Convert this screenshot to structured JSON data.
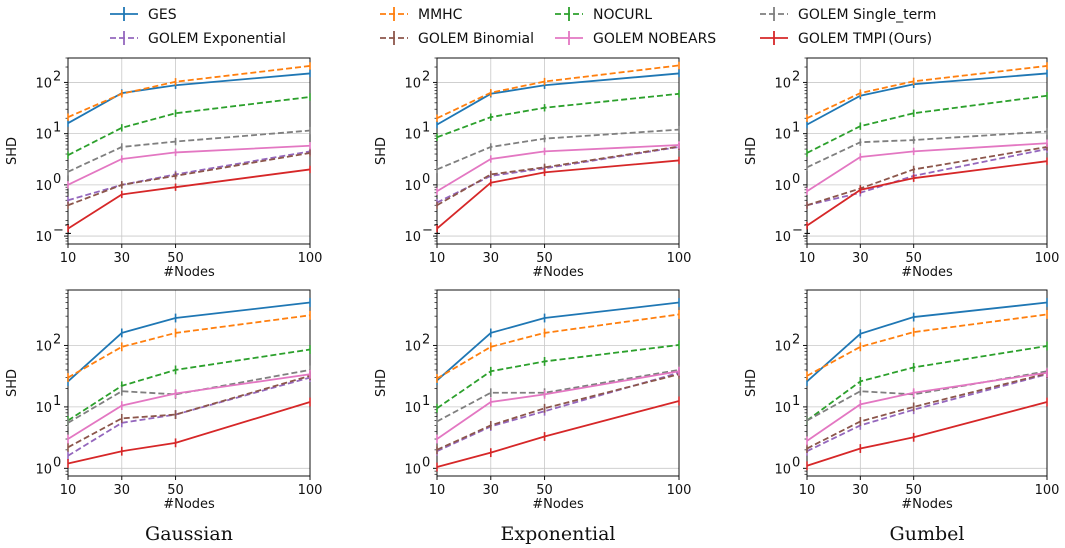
{
  "chart_data": {
    "type": "line",
    "legend": {
      "placement": "top",
      "entries": [
        {
          "name": "GES",
          "color": "#1f77b4",
          "dashed": false
        },
        {
          "name": "MMHC",
          "color": "#ff7f0e",
          "dashed": true
        },
        {
          "name": "NOCURL",
          "color": "#2ca02c",
          "dashed": true
        },
        {
          "name": "GOLEM Single_term",
          "color": "#7f7f7f",
          "dashed": true
        },
        {
          "name": "GOLEM Exponential",
          "color": "#9467bd",
          "dashed": true
        },
        {
          "name": "GOLEM Binomial",
          "color": "#8c564b",
          "dashed": true
        },
        {
          "name": "GOLEM NOBEARS",
          "color": "#e377c2",
          "dashed": false
        },
        {
          "name": "GOLEM TMPI",
          "suffix": "(Ours)",
          "color": "#d62728",
          "dashed": false
        }
      ]
    },
    "x": [
      10,
      30,
      50,
      100
    ],
    "xlabel": "#Nodes",
    "ylabel": "SHD",
    "yscale": "log",
    "grid": true,
    "captions": [
      "Gaussian",
      "Exponential",
      "Gumbel"
    ],
    "panels": [
      {
        "row": 0,
        "col": 0,
        "ylim": [
          0.07,
          300
        ],
        "yticks": [
          {
            "v": 0.1,
            "l": "10"
          },
          {
            "v": 1,
            "l": "10"
          },
          {
            "v": 10,
            "l": "10"
          },
          {
            "v": 100,
            "l": "10"
          }
        ],
        "ytick_exps": [
          "−1",
          "0",
          "1",
          "2"
        ],
        "series": {
          "GES": [
            16,
            62,
            88,
            150
          ],
          "MMHC": [
            21,
            60,
            103,
            210
          ],
          "NOCURL": [
            3.8,
            13,
            25,
            52
          ],
          "GOLEM Single_term": [
            1.8,
            5.5,
            7,
            11.5
          ],
          "GOLEM Exponential": [
            0.5,
            1.0,
            1.6,
            4.5
          ],
          "GOLEM Binomial": [
            0.4,
            1.0,
            1.5,
            4.2
          ],
          "GOLEM NOBEARS": [
            1.0,
            3.2,
            4.3,
            5.8
          ],
          "GOLEM TMPI": [
            0.14,
            0.65,
            0.9,
            2.0
          ]
        }
      },
      {
        "row": 0,
        "col": 1,
        "ylim": [
          0.07,
          300
        ],
        "yticks": [
          {
            "v": 0.1,
            "l": "10"
          },
          {
            "v": 1,
            "l": "10"
          },
          {
            "v": 10,
            "l": "10"
          },
          {
            "v": 100,
            "l": "10"
          }
        ],
        "ytick_exps": [
          "−1",
          "0",
          "1",
          "2"
        ],
        "series": {
          "GES": [
            15,
            60,
            88,
            150
          ],
          "MMHC": [
            20,
            63,
            104,
            215
          ],
          "NOCURL": [
            8.5,
            21,
            32,
            60
          ],
          "GOLEM Single_term": [
            2.0,
            5.5,
            8,
            12
          ],
          "GOLEM Exponential": [
            0.45,
            1.5,
            2.1,
            5.5
          ],
          "GOLEM Binomial": [
            0.4,
            1.6,
            2.2,
            5.6
          ],
          "GOLEM NOBEARS": [
            0.75,
            3.2,
            4.5,
            6.0
          ],
          "GOLEM TMPI": [
            0.14,
            1.1,
            1.75,
            3.0
          ]
        }
      },
      {
        "row": 0,
        "col": 2,
        "ylim": [
          0.07,
          300
        ],
        "yticks": [
          {
            "v": 0.1,
            "l": "10"
          },
          {
            "v": 1,
            "l": "10"
          },
          {
            "v": 10,
            "l": "10"
          },
          {
            "v": 100,
            "l": "10"
          }
        ],
        "ytick_exps": [
          "−1",
          "0",
          "1",
          "2"
        ],
        "series": {
          "GES": [
            15,
            55,
            92,
            150
          ],
          "MMHC": [
            20,
            62,
            105,
            210
          ],
          "NOCURL": [
            4.2,
            14,
            25,
            55
          ],
          "GOLEM Single_term": [
            2.2,
            6.8,
            7.5,
            11
          ],
          "GOLEM Exponential": [
            0.4,
            0.7,
            1.5,
            5.0
          ],
          "GOLEM Binomial": [
            0.4,
            0.85,
            2.0,
            5.5
          ],
          "GOLEM NOBEARS": [
            0.75,
            3.5,
            4.5,
            6.5
          ],
          "GOLEM TMPI": [
            0.16,
            0.8,
            1.35,
            2.9
          ]
        }
      },
      {
        "row": 1,
        "col": 0,
        "ylim": [
          0.75,
          800
        ],
        "yticks": [
          {
            "v": 1,
            "l": "10"
          },
          {
            "v": 10,
            "l": "10"
          },
          {
            "v": 100,
            "l": "10"
          }
        ],
        "ytick_exps": [
          "0",
          "1",
          "2"
        ],
        "series": {
          "GES": [
            26,
            160,
            280,
            500
          ],
          "MMHC": [
            30,
            95,
            160,
            310
          ],
          "NOCURL": [
            6,
            22,
            40,
            86
          ],
          "GOLEM Single_term": [
            5.5,
            18,
            16,
            40
          ],
          "GOLEM Exponential": [
            1.6,
            5.5,
            7.5,
            30
          ],
          "GOLEM Binomial": [
            2.2,
            6.5,
            7.5,
            32
          ],
          "GOLEM NOBEARS": [
            3.0,
            10.5,
            16.5,
            34
          ],
          "GOLEM TMPI": [
            1.2,
            1.9,
            2.6,
            12
          ]
        }
      },
      {
        "row": 1,
        "col": 1,
        "ylim": [
          0.75,
          800
        ],
        "yticks": [
          {
            "v": 1,
            "l": "10"
          },
          {
            "v": 10,
            "l": "10"
          },
          {
            "v": 100,
            "l": "10"
          }
        ],
        "ytick_exps": [
          "0",
          "1",
          "2"
        ],
        "series": {
          "GES": [
            27,
            160,
            280,
            500
          ],
          "MMHC": [
            29,
            95,
            160,
            320
          ],
          "NOCURL": [
            9.5,
            38,
            55,
            102
          ],
          "GOLEM Single_term": [
            5.8,
            17,
            17,
            40
          ],
          "GOLEM Exponential": [
            1.9,
            4.8,
            8.5,
            36
          ],
          "GOLEM Binomial": [
            2.0,
            5.0,
            9.5,
            34
          ],
          "GOLEM NOBEARS": [
            3.0,
            12,
            16,
            38
          ],
          "GOLEM TMPI": [
            1.05,
            1.8,
            3.3,
            12.5
          ]
        }
      },
      {
        "row": 1,
        "col": 2,
        "ylim": [
          0.75,
          800
        ],
        "yticks": [
          {
            "v": 1,
            "l": "10"
          },
          {
            "v": 10,
            "l": "10"
          },
          {
            "v": 100,
            "l": "10"
          }
        ],
        "ytick_exps": [
          "0",
          "1",
          "2"
        ],
        "series": {
          "GES": [
            26,
            155,
            290,
            500
          ],
          "MMHC": [
            32,
            95,
            165,
            320
          ],
          "NOCURL": [
            6,
            26,
            44,
            98
          ],
          "GOLEM Single_term": [
            6.0,
            18,
            16,
            38
          ],
          "GOLEM Exponential": [
            1.9,
            5.0,
            9.0,
            34
          ],
          "GOLEM Binomial": [
            2.1,
            5.8,
            10,
            35
          ],
          "GOLEM NOBEARS": [
            2.8,
            11,
            17,
            36
          ],
          "GOLEM TMPI": [
            1.1,
            2.1,
            3.2,
            12
          ]
        }
      }
    ]
  }
}
